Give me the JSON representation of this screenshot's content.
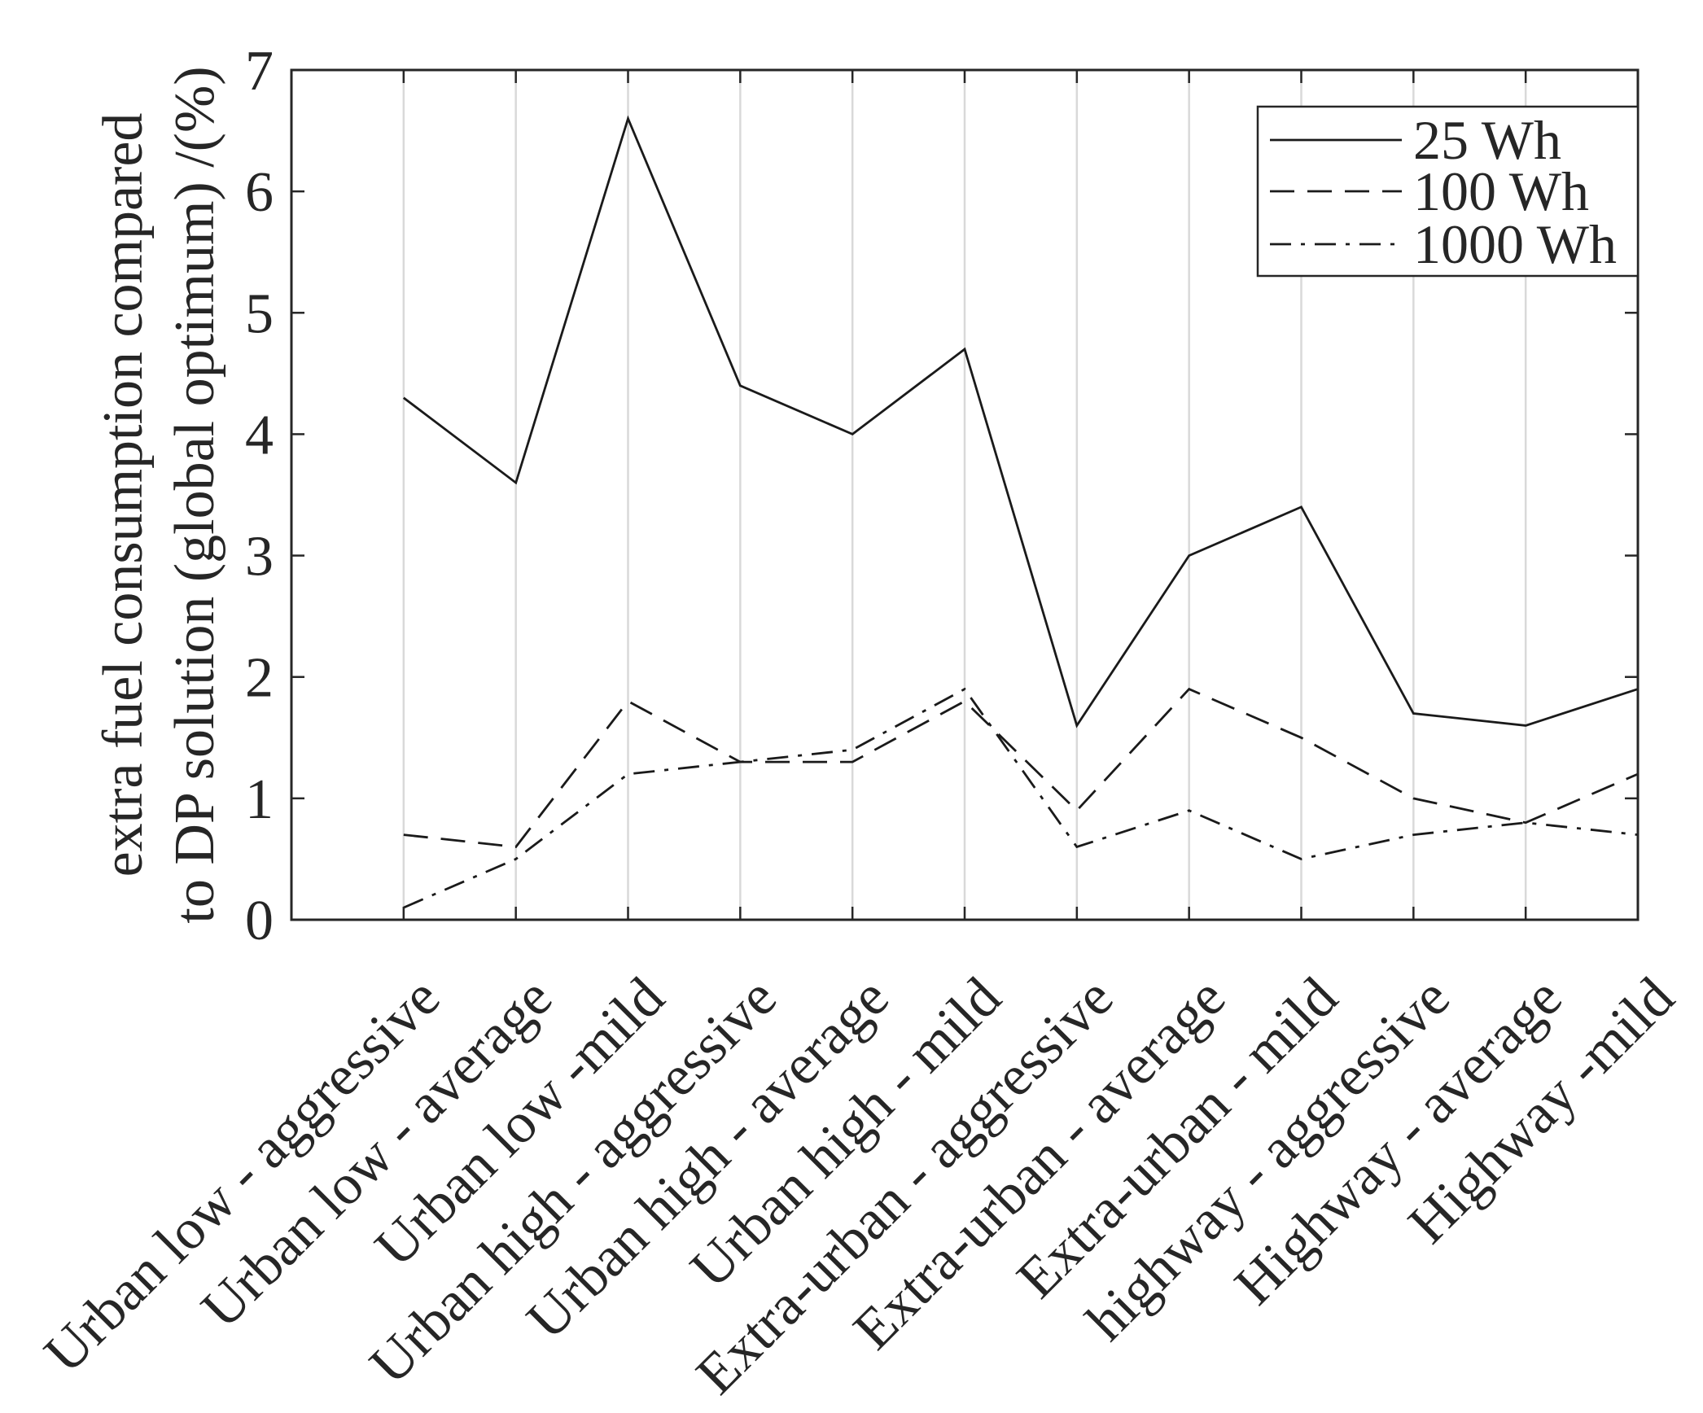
{
  "chart_data": {
    "type": "line",
    "title": "",
    "xlabel": "",
    "ylabel": [
      "extra fuel consumption compared",
      "to DP solution (global optimum) /(%)"
    ],
    "ylim": [
      0,
      7
    ],
    "yticks": [
      0,
      1,
      2,
      3,
      4,
      5,
      6,
      7
    ],
    "categories": [
      "Urban low - aggressive",
      "Urban low - average",
      "Urban low -mild",
      "Urban high - aggressive",
      "Urban high - average",
      "Urban high - mild",
      "Extra-urban - aggressive",
      "Extra-urban - average",
      "Extra-urban - mild",
      "highway - aggressive",
      "Highway - average",
      "Highway -mild"
    ],
    "series": [
      {
        "name": "25 Wh",
        "values": [
          4.3,
          3.6,
          6.6,
          4.4,
          4.0,
          4.7,
          1.6,
          3.0,
          3.4,
          1.7,
          1.6,
          1.9
        ]
      },
      {
        "name": "100 Wh",
        "values": [
          0.7,
          0.6,
          1.8,
          1.3,
          1.3,
          1.8,
          0.9,
          1.9,
          1.5,
          1.0,
          0.8,
          1.2
        ]
      },
      {
        "name": "1000 Wh",
        "values": [
          0.1,
          0.5,
          1.2,
          1.3,
          1.4,
          1.9,
          0.6,
          0.9,
          0.5,
          0.7,
          0.8,
          0.7
        ]
      }
    ],
    "grid": true,
    "legend_position": "top-right"
  },
  "colors": {
    "line": "#1a1a1a",
    "grid": "#d9d9d9",
    "axis": "#262626",
    "text": "#262626"
  }
}
